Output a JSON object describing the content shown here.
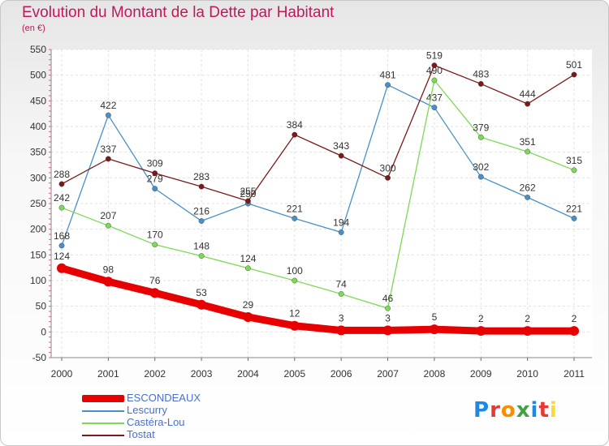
{
  "title": "Evolution du Montant de la Dette par Habitant",
  "subtitle": "(en €)",
  "logo": {
    "letters": [
      "P",
      "r",
      "o",
      "x",
      "i",
      "t",
      "i"
    ],
    "colors": [
      "#1e88e5",
      "#e53935",
      "#fb8c00",
      "#43a047",
      "#1e88e5",
      "#e53935",
      "#fdd835"
    ]
  },
  "chart_data": {
    "type": "line",
    "x": [
      "2000",
      "2001",
      "2002",
      "2003",
      "2004",
      "2005",
      "2006",
      "2007",
      "2008",
      "2009",
      "2010",
      "2011"
    ],
    "ylim": [
      -50,
      550
    ],
    "yticks": [
      "-50",
      "0",
      "50",
      "100",
      "150",
      "200",
      "250",
      "300",
      "350",
      "400",
      "450",
      "500",
      "550"
    ],
    "grid": true,
    "legend_position": "bottom-left",
    "series": [
      {
        "name": "ESCONDEAUX",
        "color": "#e60000",
        "values": [
          124,
          98,
          76,
          53,
          29,
          12,
          3,
          3,
          5,
          2,
          2,
          2
        ]
      },
      {
        "name": "Lescurry",
        "color": "#4a90c8",
        "values": [
          168,
          422,
          279,
          216,
          250,
          221,
          194,
          481,
          437,
          302,
          262,
          221
        ]
      },
      {
        "name": "Castéra-Lou",
        "color": "#7ed957",
        "values": [
          242,
          207,
          170,
          148,
          124,
          100,
          74,
          46,
          490,
          379,
          351,
          315
        ]
      },
      {
        "name": "Tostat",
        "color": "#7b1a1a",
        "values": [
          288,
          337,
          309,
          283,
          255,
          384,
          343,
          300,
          519,
          483,
          444,
          501
        ]
      }
    ]
  }
}
